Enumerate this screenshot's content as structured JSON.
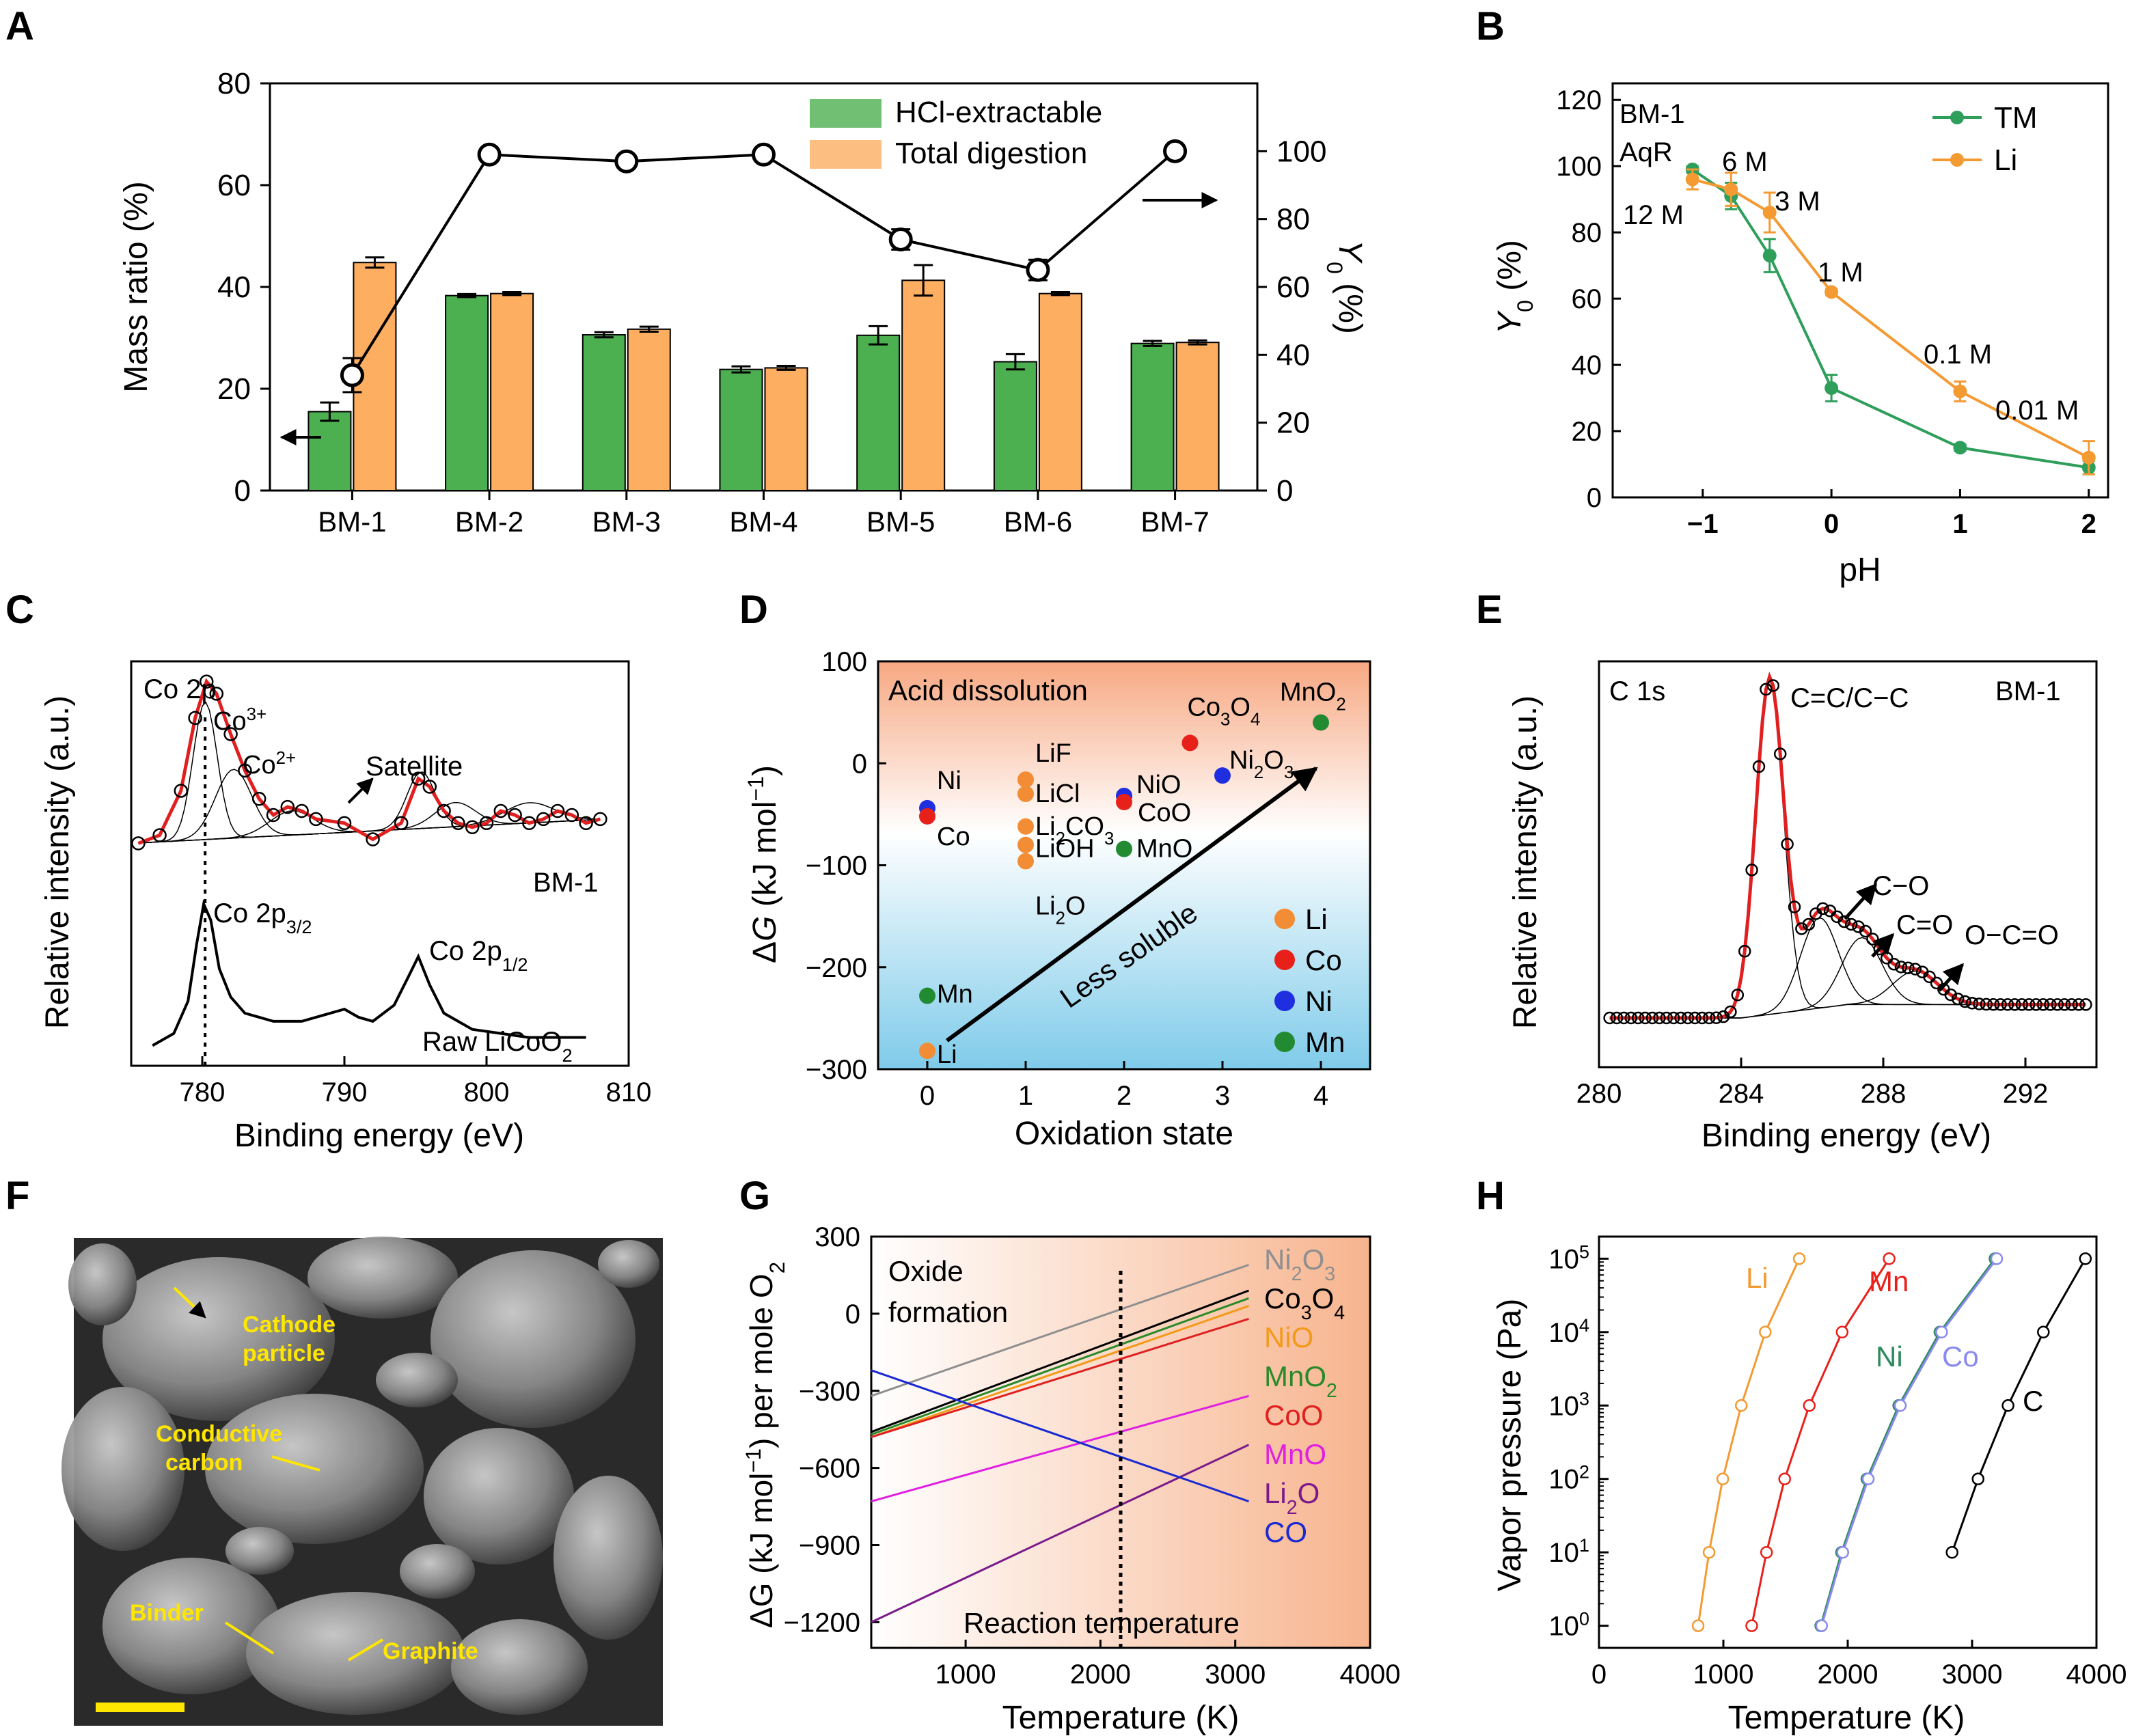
{
  "panels": {
    "A": {
      "label": "A"
    },
    "B": {
      "label": "B"
    },
    "C": {
      "label": "C"
    },
    "D": {
      "label": "D"
    },
    "E": {
      "label": "E"
    },
    "F": {
      "label": "F"
    },
    "G": {
      "label": "G"
    },
    "H": {
      "label": "H"
    }
  },
  "chart_data": [
    {
      "panel": "A",
      "type": "bar",
      "categories": [
        "BM-1",
        "BM-2",
        "BM-3",
        "BM-4",
        "BM-5",
        "BM-6",
        "BM-7"
      ],
      "ylabel": "Mass ratio (%)",
      "ylim": [
        0,
        80
      ],
      "yticks": [
        0,
        20,
        40,
        60,
        80
      ],
      "y2label": "Y0 (%)",
      "y2lim": [
        0,
        120
      ],
      "y2ticks": [
        0,
        20,
        40,
        60,
        80,
        100
      ],
      "legend_position": "top-right",
      "series": [
        {
          "name": "HCl-extractable",
          "color": "#4caf50",
          "values": [
            15.5,
            38.3,
            30.6,
            23.8,
            30.5,
            25.3,
            28.9
          ],
          "errors": [
            1.8,
            0.3,
            0.5,
            0.6,
            1.8,
            1.5,
            0.5
          ]
        },
        {
          "name": "Total digestion",
          "color": "#fdae61",
          "values": [
            44.8,
            38.7,
            31.7,
            24.1,
            41.3,
            38.7,
            29.1
          ],
          "errors": [
            1.0,
            0.3,
            0.5,
            0.4,
            3.0,
            0.3,
            0.4
          ]
        }
      ],
      "line": {
        "values": [
          34,
          99,
          97,
          99,
          74,
          65,
          100
        ],
        "errors": [
          5,
          1,
          1,
          1.5,
          3,
          3,
          1
        ]
      }
    },
    {
      "panel": "B",
      "type": "line",
      "xlabel": "pH",
      "ylabel": "Y0 (%)",
      "xlim": [
        -1.7,
        2.15
      ],
      "ylim": [
        0,
        125
      ],
      "xticks": [
        "−1",
        "0",
        "1",
        "2"
      ],
      "yticks": [
        0,
        20,
        40,
        60,
        80,
        100,
        120
      ],
      "legend_position": "top-right",
      "series": [
        {
          "name": "TM",
          "color": "#2e9e5b",
          "x": [
            -1.08,
            -0.78,
            -0.48,
            0,
            1,
            2
          ],
          "y": [
            99,
            91,
            73,
            33,
            15,
            9
          ],
          "errors": [
            1,
            4,
            5,
            4,
            1,
            2
          ]
        },
        {
          "name": "Li",
          "color": "#f39a33",
          "x": [
            -1.08,
            -0.78,
            -0.48,
            0,
            1,
            2
          ],
          "y": [
            96,
            93,
            86,
            62,
            32,
            12
          ],
          "errors": [
            3,
            5,
            6,
            1,
            3,
            5
          ]
        }
      ],
      "annotations": [
        "BM-1",
        "AqR",
        "12 M",
        "6 M",
        "3 M",
        "1 M",
        "0.1 M",
        "0.01 M"
      ]
    },
    {
      "panel": "C",
      "type": "line",
      "xlabel": "Binding energy (eV)",
      "ylabel": "Relative intensity (a.u.)",
      "xlim": [
        775,
        810
      ],
      "xticks": [
        780,
        790,
        800,
        810
      ],
      "series": [
        {
          "name": "BM-1",
          "x": [
            775.5,
            777,
            778.5,
            779.5,
            780.3,
            781,
            782,
            783,
            784,
            785,
            786,
            787,
            788,
            790,
            792,
            794,
            795.2,
            796,
            797,
            798,
            799,
            800,
            801,
            802,
            803,
            804,
            805,
            806,
            807,
            808
          ],
          "y": [
            0.55,
            0.57,
            0.68,
            0.86,
            0.95,
            0.92,
            0.82,
            0.73,
            0.66,
            0.62,
            0.64,
            0.63,
            0.61,
            0.6,
            0.56,
            0.6,
            0.71,
            0.69,
            0.63,
            0.6,
            0.59,
            0.6,
            0.63,
            0.62,
            0.6,
            0.61,
            0.63,
            0.62,
            0.6,
            0.61
          ]
        },
        {
          "name": "Raw LiCoO2",
          "x": [
            776.5,
            778,
            779,
            779.6,
            780.1,
            780.6,
            781.2,
            782,
            783,
            785,
            787,
            789,
            790,
            791,
            792,
            793.5,
            794.5,
            795.2,
            796,
            797,
            799,
            801,
            803,
            805,
            807
          ],
          "y": [
            0.05,
            0.08,
            0.16,
            0.3,
            0.4,
            0.36,
            0.24,
            0.17,
            0.13,
            0.11,
            0.11,
            0.13,
            0.14,
            0.12,
            0.11,
            0.15,
            0.22,
            0.27,
            0.2,
            0.13,
            0.09,
            0.08,
            0.07,
            0.07,
            0.07
          ]
        }
      ],
      "annotations": [
        "Co 2p",
        "Co3+",
        "Co2+",
        "Satellite",
        "BM-1",
        "Co 2p3/2",
        "Co 2p1/2",
        "Raw LiCoO2"
      ]
    },
    {
      "panel": "D",
      "type": "scatter",
      "title": "Acid dissolution",
      "xlabel": "Oxidation state",
      "ylabel": "ΔG (kJ mol−1)",
      "xlim": [
        -0.5,
        4.5
      ],
      "ylim": [
        -300,
        100
      ],
      "xticks": [
        0,
        1,
        2,
        3,
        4
      ],
      "yticks": [
        -300,
        -200,
        -100,
        0,
        100
      ],
      "legend_position": "bottom-right",
      "legend": [
        {
          "name": "Li",
          "color": "#f28d35"
        },
        {
          "name": "Co",
          "color": "#e8201a"
        },
        {
          "name": "Ni",
          "color": "#1f2fe0"
        },
        {
          "name": "Mn",
          "color": "#228b32"
        }
      ],
      "points": [
        {
          "label": "Ni",
          "element": "Ni",
          "x": 0,
          "y": -44
        },
        {
          "label": "Co",
          "element": "Co",
          "x": 0,
          "y": -52
        },
        {
          "label": "Mn",
          "element": "Mn",
          "x": 0,
          "y": -228
        },
        {
          "label": "Li",
          "element": "Li",
          "x": 0,
          "y": -282
        },
        {
          "label": "LiF",
          "element": "Li",
          "x": 1,
          "y": -16
        },
        {
          "label": "LiCl",
          "element": "Li",
          "x": 1,
          "y": -30
        },
        {
          "label": "Li2CO3",
          "element": "Li",
          "x": 1,
          "y": -62
        },
        {
          "label": "LiOH",
          "element": "Li",
          "x": 1,
          "y": -80
        },
        {
          "label": "Li2O",
          "element": "Li",
          "x": 1,
          "y": -96
        },
        {
          "label": "NiO",
          "element": "Ni",
          "x": 2,
          "y": -32
        },
        {
          "label": "CoO",
          "element": "Co",
          "x": 2,
          "y": -38
        },
        {
          "label": "MnO",
          "element": "Mn",
          "x": 2,
          "y": -84
        },
        {
          "label": "Co3O4",
          "element": "Co",
          "x": 2.67,
          "y": 20
        },
        {
          "label": "Ni2O3",
          "element": "Ni",
          "x": 3,
          "y": -12
        },
        {
          "label": "MnO2",
          "element": "Mn",
          "x": 4,
          "y": 40
        }
      ],
      "annotations": [
        "Less soluble"
      ]
    },
    {
      "panel": "E",
      "type": "line",
      "xlabel": "Binding energy (eV)",
      "ylabel": "Relative intensity (a.u.)",
      "xlim": [
        280,
        294
      ],
      "xticks": [
        280,
        284,
        288,
        292
      ],
      "annotations": [
        "C 1s",
        "BM-1",
        "C=C/C−C",
        "C−O",
        "C=O",
        "O−C=O"
      ],
      "peaks": [
        {
          "name": "C=C/C−C",
          "center": 284.8,
          "height": 1.0,
          "width": 0.55
        },
        {
          "name": "C−O",
          "center": 286.2,
          "height": 0.27,
          "width": 0.75
        },
        {
          "name": "C=O",
          "center": 287.4,
          "height": 0.2,
          "width": 0.8
        },
        {
          "name": "O−C=O",
          "center": 288.9,
          "height": 0.1,
          "width": 0.9
        }
      ]
    },
    {
      "panel": "G",
      "type": "line",
      "xlabel": "Temperature (K)",
      "ylabel": "ΔG (kJ mol−1) per mole O2",
      "xlim": [
        300,
        4000
      ],
      "ylim": [
        -1300,
        300
      ],
      "xticks": [
        1000,
        2000,
        3000,
        4000
      ],
      "yticks": [
        -1200,
        -900,
        -600,
        -300,
        0,
        300
      ],
      "annotations": [
        "Oxide formation",
        "Reaction temperature"
      ],
      "reaction_temperature": 2150,
      "series": [
        {
          "name": "Ni2O3",
          "color": "#8f8f8f",
          "x": [
            300,
            3100
          ],
          "y": [
            -320,
            190
          ]
        },
        {
          "name": "Co3O4",
          "color": "#000000",
          "x": [
            300,
            3100
          ],
          "y": [
            -460,
            90
          ]
        },
        {
          "name": "NiO",
          "color": "#f39a1a",
          "x": [
            300,
            3100
          ],
          "y": [
            -480,
            30
          ]
        },
        {
          "name": "MnO2",
          "color": "#2a8a2a",
          "x": [
            300,
            3100
          ],
          "y": [
            -470,
            60
          ]
        },
        {
          "name": "CoO",
          "color": "#e02020",
          "x": [
            300,
            3100
          ],
          "y": [
            -480,
            -20
          ]
        },
        {
          "name": "MnO",
          "color": "#e020e0",
          "x": [
            300,
            3100
          ],
          "y": [
            -730,
            -320
          ]
        },
        {
          "name": "Li2O",
          "color": "#7a1a8a",
          "x": [
            300,
            3100
          ],
          "y": [
            -1200,
            -510
          ]
        },
        {
          "name": "CO",
          "color": "#1a2ad0",
          "x": [
            300,
            3100
          ],
          "y": [
            -220,
            -730
          ]
        }
      ]
    },
    {
      "panel": "H",
      "type": "line",
      "xlabel": "Temperature (K)",
      "ylabel": "Vapor pressure (Pa)",
      "xlim": [
        0,
        4000
      ],
      "xticks": [
        0,
        1000,
        2000,
        3000,
        4000
      ],
      "yscale": "log",
      "ylim": [
        0.5,
        200000
      ],
      "yticks": [
        "10^0",
        "10^1",
        "10^2",
        "10^3",
        "10^4",
        "10^5"
      ],
      "series": [
        {
          "name": "Li",
          "color": "#f39a33",
          "x": [
            797,
            885,
            995,
            1144,
            1337,
            1610
          ],
          "y": [
            1,
            10,
            100,
            1000,
            10000,
            100000
          ]
        },
        {
          "name": "Mn",
          "color": "#e8201a",
          "x": [
            1228,
            1347,
            1493,
            1691,
            1955,
            2333
          ],
          "y": [
            1,
            10,
            100,
            1000,
            10000,
            100000
          ]
        },
        {
          "name": "Ni",
          "color": "#2e8b5b",
          "x": [
            1783,
            1950,
            2154,
            2410,
            2741,
            3184
          ],
          "y": [
            1,
            10,
            100,
            1000,
            10000,
            100000
          ]
        },
        {
          "name": "Co",
          "color": "#8a8af0",
          "x": [
            1790,
            1960,
            2165,
            2423,
            2755,
            3198
          ],
          "y": [
            1,
            10,
            100,
            1000,
            10000,
            100000
          ]
        },
        {
          "name": "C",
          "color": "#000000",
          "x": [
            2839,
            3048,
            3289,
            3573,
            3911
          ],
          "y": [
            10,
            100,
            1000,
            10000,
            100000
          ]
        }
      ]
    }
  ],
  "sem": {
    "labels": [
      "Cathode particle",
      "Conductive carbon",
      "Binder",
      "Graphite"
    ]
  }
}
